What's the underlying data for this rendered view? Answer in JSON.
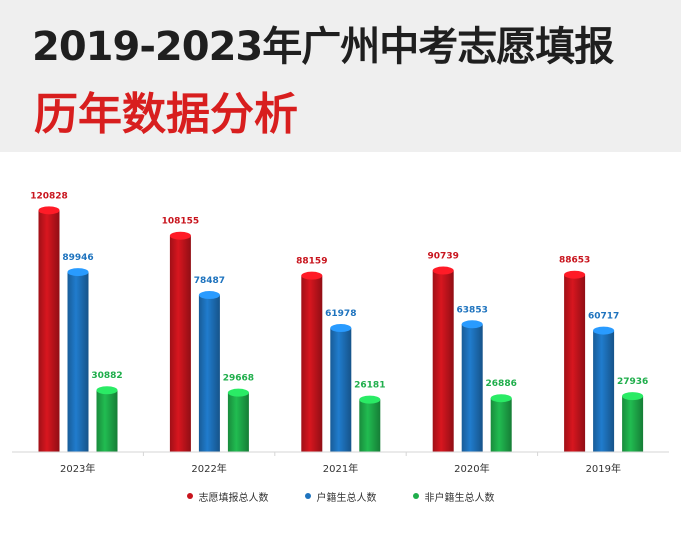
{
  "header": {
    "title": "2019-2023年广州中考志愿填报",
    "subtitle": "历年数据分析"
  },
  "colors": {
    "series_1": "#c8141d",
    "series_2": "#1e73be",
    "series_3": "#1fae4b",
    "title": "#1f1f1f",
    "subtitle": "#d81e1e"
  },
  "chart_data": {
    "type": "bar",
    "style": "cylinder",
    "categories": [
      "2023年",
      "2022年",
      "2021年",
      "2020年",
      "2019年"
    ],
    "series": [
      {
        "name": "志愿填报总人数",
        "values": [
          120828,
          108155,
          88159,
          90739,
          88653
        ]
      },
      {
        "name": "户籍生总人数",
        "values": [
          89946,
          78487,
          61978,
          63853,
          60717
        ]
      },
      {
        "name": "非户籍生总人数",
        "values": [
          30882,
          29668,
          26181,
          26886,
          27936
        ]
      }
    ],
    "ylim": [
      0,
      126000
    ],
    "grid": false,
    "legend_position": "bottom",
    "data_labels": true
  }
}
